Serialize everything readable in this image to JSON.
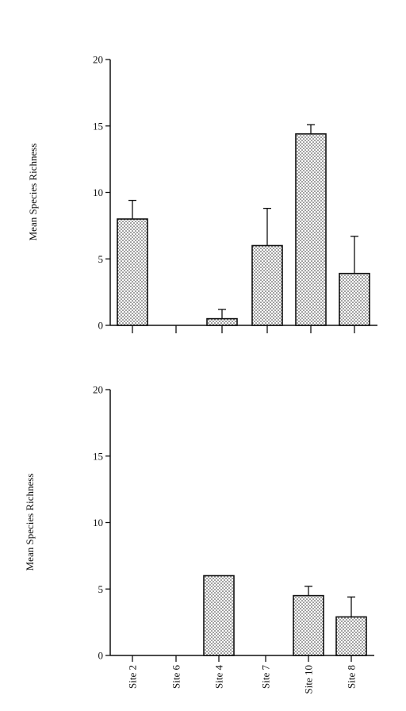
{
  "chart_data": [
    {
      "type": "bar",
      "panel": "top",
      "categories": [
        "Site 2",
        "Site 6",
        "Site 4",
        "Site 7",
        "Site 10",
        "Site 8"
      ],
      "values": [
        8.0,
        0,
        0.5,
        6.0,
        14.4,
        3.9
      ],
      "error_upper": [
        9.4,
        null,
        1.2,
        8.8,
        15.1,
        6.7
      ],
      "ylabel": "Mean Species Richness",
      "ylim": [
        0,
        20
      ],
      "yticks": [
        "0",
        "5",
        "10",
        "15",
        "20"
      ],
      "show_category_labels": false,
      "grid": false
    },
    {
      "type": "bar",
      "panel": "bottom",
      "categories": [
        "Site 2",
        "Site 6",
        "Site 4",
        "Site 7",
        "Site 10",
        "Site 8"
      ],
      "values": [
        0,
        0,
        6.0,
        0,
        4.5,
        2.9
      ],
      "error_upper": [
        null,
        null,
        null,
        null,
        5.2,
        4.4
      ],
      "ylabel": "Mean Species Richness",
      "ylim": [
        0,
        20
      ],
      "yticks": [
        "0",
        "5",
        "10",
        "15",
        "20"
      ],
      "show_category_labels": true,
      "grid": false
    }
  ]
}
